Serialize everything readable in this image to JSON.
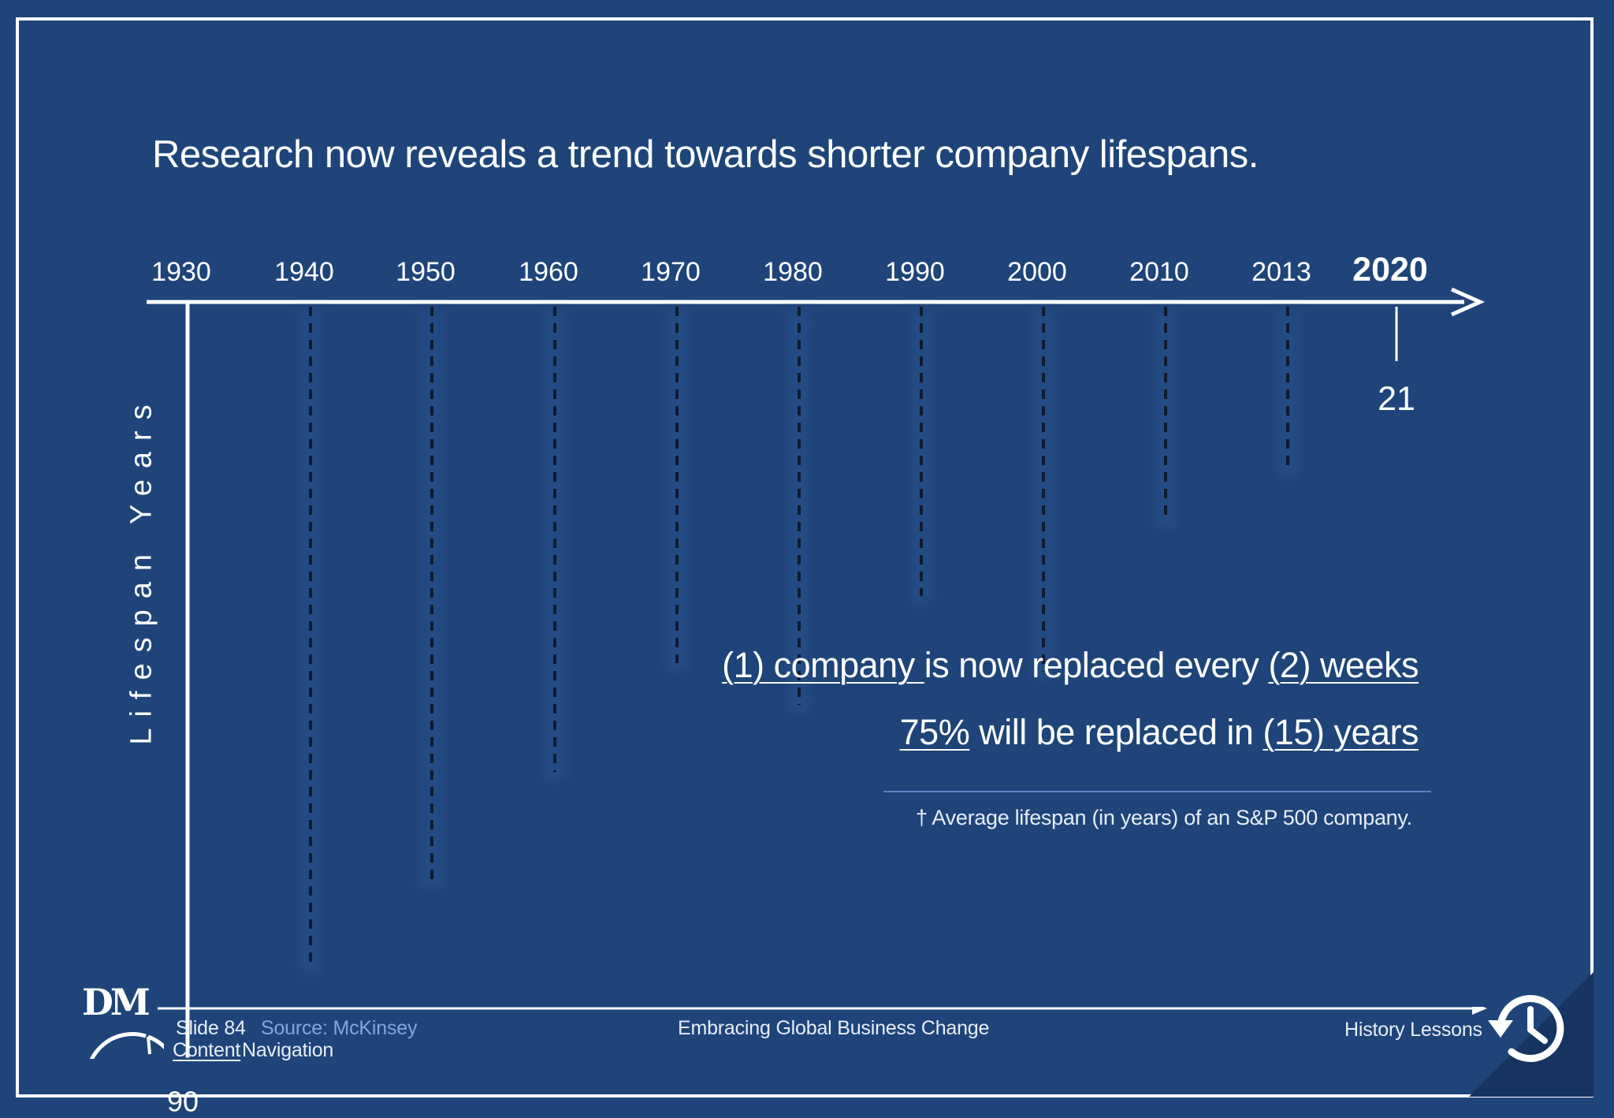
{
  "slide": {
    "title": "Research now reveals a trend towards shorter company lifespans."
  },
  "chart_data": {
    "type": "bar",
    "title": "Research now reveals a trend towards shorter company lifespans.",
    "ylabel": "Lifespan Years",
    "xlabel": "",
    "categories": [
      "1930",
      "1940",
      "1950",
      "1960",
      "1970",
      "1980",
      "1990",
      "2000",
      "2010",
      "2013",
      "2020"
    ],
    "values": [
      90,
      79,
      69,
      56,
      43,
      48,
      35,
      44,
      26,
      20,
      21
    ],
    "value_labels": {
      "first": "90",
      "last": "21"
    },
    "ylim": [
      0,
      90
    ],
    "orientation": "downward from timeline",
    "grid": false,
    "legend": "none"
  },
  "statements": {
    "line1": {
      "part1": "(1) company ",
      "part2": "is now replaced every ",
      "part3": "(2) weeks"
    },
    "line2": {
      "part1": "75%",
      "part2": " will be replaced in ",
      "part3": "(15) years"
    }
  },
  "footnote": "† Average lifespan (in years) of an S&P 500 company.",
  "footer": {
    "logo": "DM",
    "slide_number": "Slide 84",
    "source": "Source: McKinsey",
    "content_link": "Content",
    "navigation": " Navigation",
    "center": "Embracing Global Business Change",
    "section": "History Lessons",
    "section_icon": "history-clock-icon"
  },
  "colors": {
    "background": "#1f4479",
    "text": "#ffffff",
    "bars": "#0d1b2e",
    "source": "#7fa7e0"
  }
}
